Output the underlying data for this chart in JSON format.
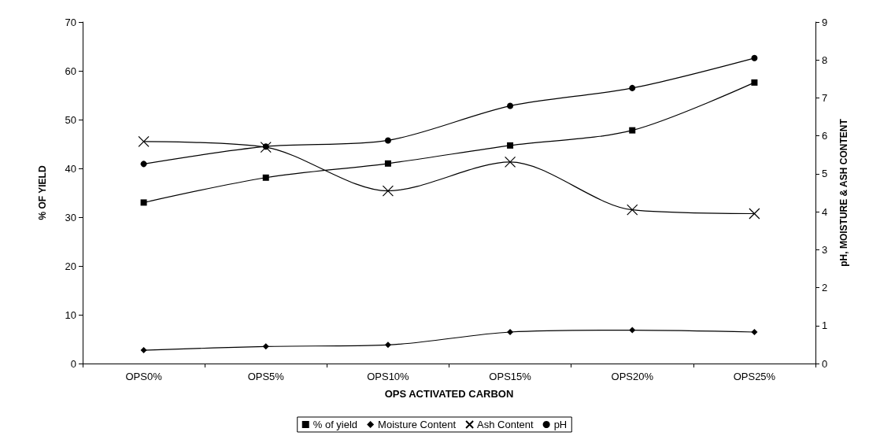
{
  "chart_data": {
    "type": "line",
    "xlabel": "OPS ACTIVATED CARBON",
    "ylabel": "% OF YIELD",
    "y2label": "pH, MOISTURE & ASH CONTENT",
    "categories": [
      "OPS0%",
      "OPS5%",
      "OPS10%",
      "OPS15%",
      "OPS20%",
      "OPS25%"
    ],
    "series": [
      {
        "name": "% of yield",
        "color": "#000000",
        "marker": "square",
        "values": [
          33.0,
          38.1,
          41.0,
          44.7,
          47.8,
          57.6
        ]
      },
      {
        "name": "Moisture Content",
        "color": "#000000",
        "marker": "diamond",
        "axis": "y2",
        "values": [
          0.35,
          0.45,
          0.49,
          0.83,
          0.88,
          0.83
        ]
      },
      {
        "name": "Ash Content",
        "color": "#000000",
        "marker": "cross",
        "axis": "y2",
        "values": [
          5.85,
          5.7,
          4.55,
          5.31,
          4.05,
          3.95
        ]
      },
      {
        "name": "pH",
        "color": "#000000",
        "marker": "circle",
        "axis": "y2",
        "values": [
          5.26,
          5.72,
          5.88,
          6.79,
          7.26,
          8.05
        ]
      }
    ],
    "ylim": [
      0,
      70
    ],
    "yticks": [
      0,
      10,
      20,
      30,
      40,
      50,
      60,
      70
    ],
    "y2lim": [
      0,
      9
    ],
    "y2ticks": [
      0,
      1,
      2,
      3,
      4,
      5,
      6,
      7,
      8,
      9
    ],
    "grid": false,
    "legend": "bottom",
    "line_style": "solid"
  }
}
